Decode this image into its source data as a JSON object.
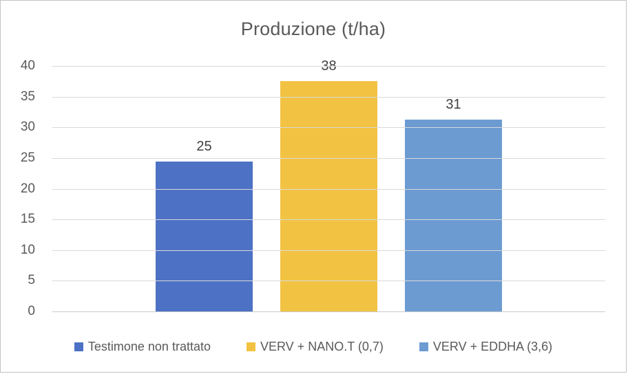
{
  "chart_data": {
    "type": "bar",
    "title": "Produzione (t/ha)",
    "categories": [
      "Testimone non trattato",
      "VERV + NANO.T (0,7)",
      "VERV + EDDHA (3,6)"
    ],
    "values": [
      24.5,
      37.6,
      31.4
    ],
    "data_labels": [
      "25",
      "38",
      "31"
    ],
    "series_colors": [
      "#4d71c4",
      "#f2c342",
      "#6c9bd2"
    ],
    "xlabel": "",
    "ylabel": "",
    "ylim": [
      0,
      40
    ],
    "yticks": [
      0,
      5,
      10,
      15,
      20,
      25,
      30,
      35,
      40
    ],
    "grid": "horizontal",
    "legend_position": "bottom",
    "colors": {
      "title_text": "#595959",
      "axis_text": "#595959",
      "value_label_text": "#404040",
      "gridline": "#d9d9d9",
      "frame_border": "#c3c3c3",
      "background": "#ffffff"
    }
  }
}
